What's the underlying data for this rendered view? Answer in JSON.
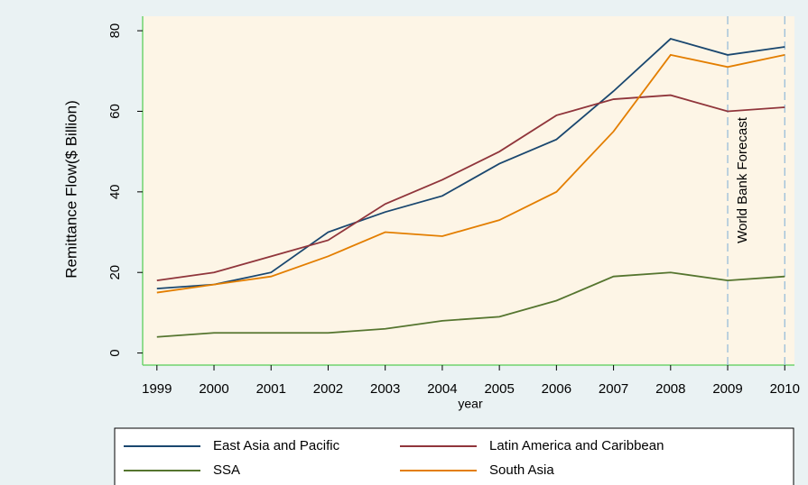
{
  "chart_data": {
    "type": "line",
    "x": [
      1999,
      2000,
      2001,
      2002,
      2003,
      2004,
      2005,
      2006,
      2007,
      2008,
      2009,
      2010
    ],
    "series": [
      {
        "name": "East Asia and Pacific",
        "color": "#1a476f",
        "values": [
          16,
          17,
          20,
          30,
          35,
          39,
          47,
          53,
          65,
          78,
          74,
          76
        ]
      },
      {
        "name": "Latin America and Caribbean",
        "color": "#90353b",
        "values": [
          18,
          20,
          24,
          28,
          37,
          43,
          50,
          59,
          63,
          64,
          60,
          61
        ]
      },
      {
        "name": "SSA",
        "color": "#55752f",
        "values": [
          4,
          5,
          5,
          5,
          6,
          8,
          9,
          13,
          19,
          20,
          18,
          19
        ]
      },
      {
        "name": "South Asia",
        "color": "#e37e00",
        "values": [
          15,
          17,
          19,
          24,
          30,
          29,
          33,
          40,
          55,
          74,
          71,
          74
        ]
      }
    ],
    "xlabel": "year",
    "ylabel": "Remittance Flow($ Billion)",
    "xlim": [
      1998.75,
      2010.17
    ],
    "ylim": [
      -3,
      83.6
    ],
    "xticks": [
      1999,
      2000,
      2001,
      2002,
      2003,
      2004,
      2005,
      2006,
      2007,
      2008,
      2009,
      2010
    ],
    "yticks": [
      0,
      20,
      40,
      60,
      80
    ],
    "reference_lines": [
      2009,
      2010
    ],
    "reference_color": "#8fb8d8",
    "annotation": "World Bank Forecast",
    "legend": "bottom"
  }
}
